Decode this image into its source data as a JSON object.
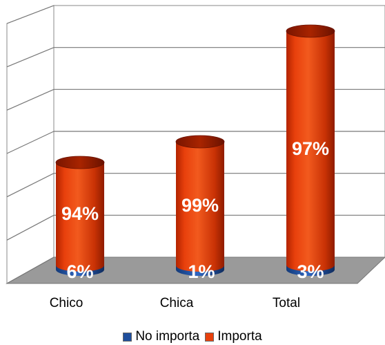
{
  "chart_data": {
    "type": "bar",
    "style": "3d-cylinder-stacked-percent",
    "categories": [
      "Chico",
      "Chica",
      "Total"
    ],
    "series": [
      {
        "name": "No importa",
        "values": [
          6,
          1,
          3
        ],
        "labels": [
          "6%",
          "1%",
          "3%"
        ],
        "color": "#1f4e9c"
      },
      {
        "name": "Importa",
        "values": [
          94,
          99,
          97
        ],
        "labels": [
          "94%",
          "99%",
          "97%"
        ],
        "color": "#e8400c"
      }
    ],
    "grid": true,
    "legend_position": "bottom",
    "label_color": "#ffffff"
  }
}
